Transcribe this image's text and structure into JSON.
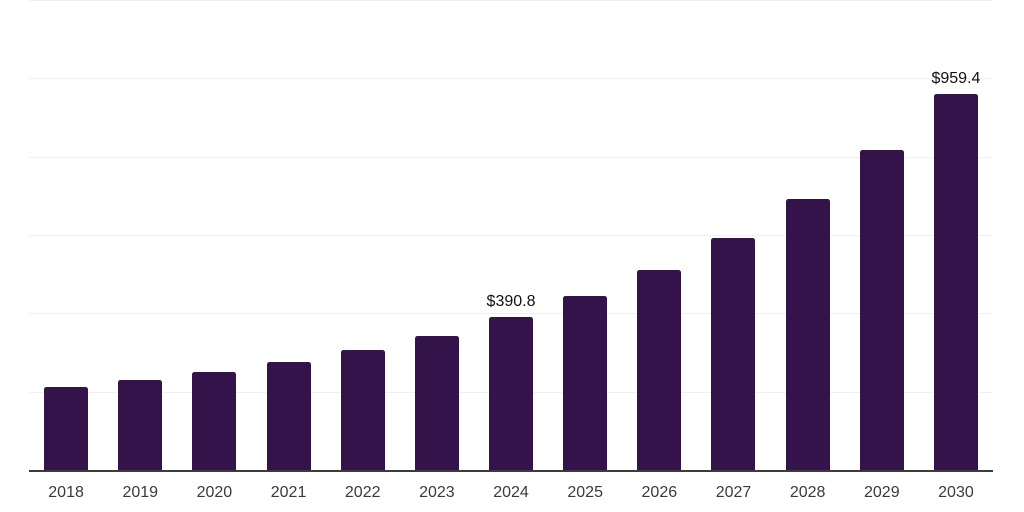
{
  "chart_data": {
    "type": "bar",
    "title": "",
    "xlabel": "",
    "ylabel": "",
    "categories": [
      "2018",
      "2019",
      "2020",
      "2021",
      "2022",
      "2023",
      "2024",
      "2025",
      "2026",
      "2027",
      "2028",
      "2029",
      "2030"
    ],
    "values": [
      212.7,
      229.8,
      250.4,
      275.2,
      306.7,
      342.6,
      390.8,
      445.1,
      510.9,
      591.9,
      691.1,
      816.6,
      959.4
    ],
    "data_labels": [
      "",
      "",
      "",
      "",
      "",
      "",
      "$390.8",
      "",
      "",
      "",
      "",
      "",
      "$959.4"
    ],
    "ylim": [
      0,
      1200
    ],
    "gridline_step": 200,
    "grid": true,
    "legend": false,
    "colors": {
      "bar": "#34124a",
      "gridline": "#f0f0f0",
      "axis": "#3c3c3c",
      "data_label": "#111111",
      "tick_label": "#3a3a3a",
      "background": "#ffffff"
    }
  }
}
